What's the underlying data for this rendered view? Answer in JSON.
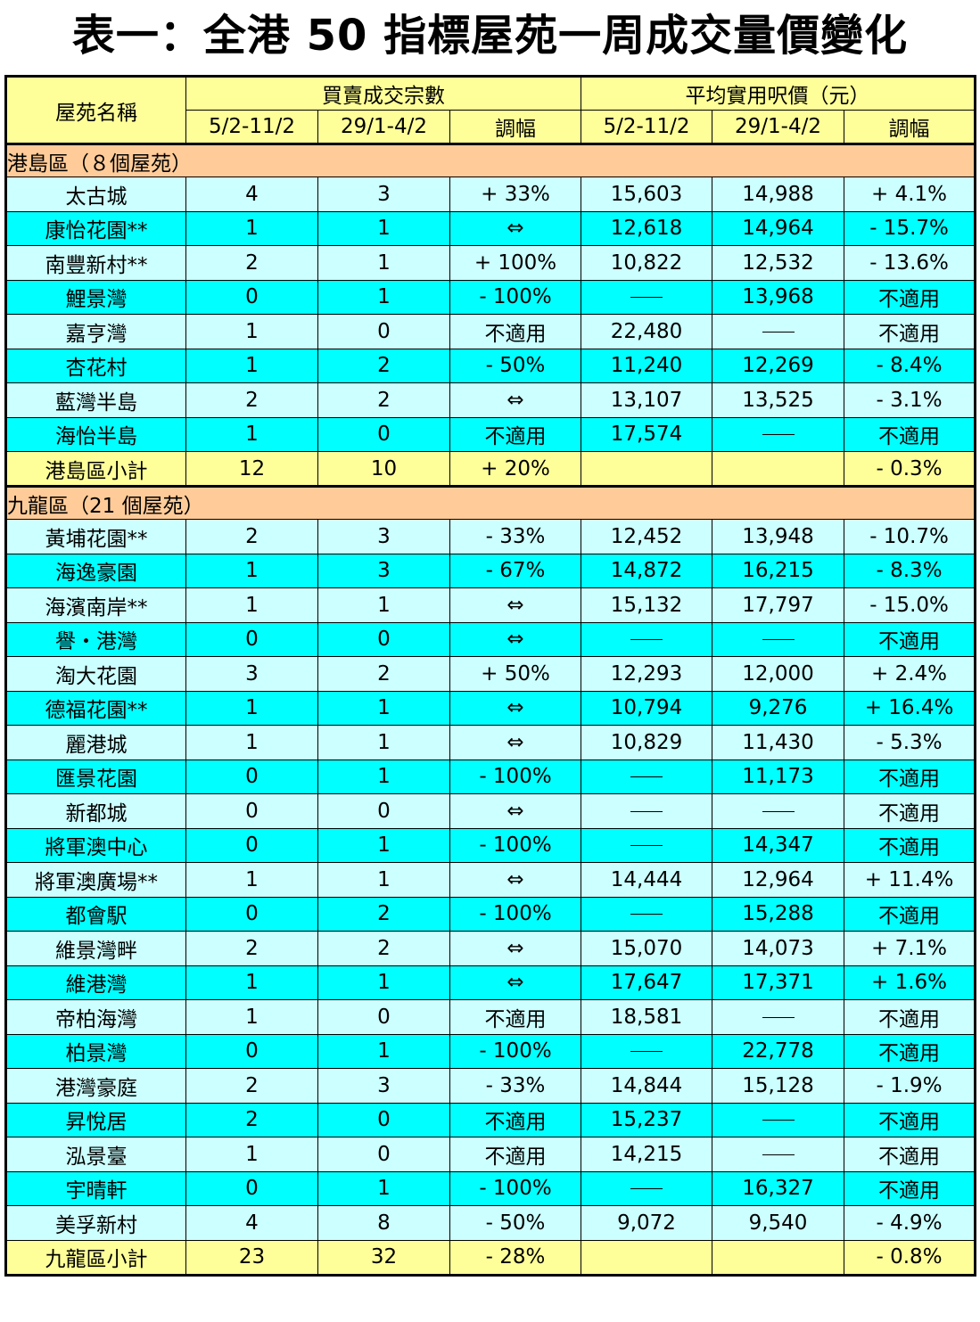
{
  "title": "表一：全港 50 指標屋苑一周成交量價變化",
  "header": {
    "name_col": "屋苑名稱",
    "group_volume": "買賣成交宗數",
    "group_price": "平均實用呎價（元）",
    "period_current": "5/2-11/2",
    "period_previous": "29/1-4/2",
    "change": "調幅"
  },
  "sections": [
    {
      "title": "港島區（８個屋苑）",
      "rows": [
        {
          "name": "太古城",
          "vol_cur": "4",
          "vol_prev": "3",
          "vol_chg": "+ 33%",
          "price_cur": "15,603",
          "price_prev": "14,988",
          "price_chg": "+ 4.1%"
        },
        {
          "name": "康怡花園**",
          "vol_cur": "1",
          "vol_prev": "1",
          "vol_chg": "⇔",
          "price_cur": "12,618",
          "price_prev": "14,964",
          "price_chg": "- 15.7%"
        },
        {
          "name": "南豐新村**",
          "vol_cur": "2",
          "vol_prev": "1",
          "vol_chg": "+ 100%",
          "price_cur": "10,822",
          "price_prev": "12,532",
          "price_chg": "- 13.6%"
        },
        {
          "name": "鯉景灣",
          "vol_cur": "0",
          "vol_prev": "1",
          "vol_chg": "- 100%",
          "price_cur": "—",
          "price_prev": "13,968",
          "price_chg": "不適用"
        },
        {
          "name": "嘉亨灣",
          "vol_cur": "1",
          "vol_prev": "0",
          "vol_chg": "不適用",
          "price_cur": "22,480",
          "price_prev": "—",
          "price_chg": "不適用"
        },
        {
          "name": "杏花村",
          "vol_cur": "1",
          "vol_prev": "2",
          "vol_chg": "- 50%",
          "price_cur": "11,240",
          "price_prev": "12,269",
          "price_chg": "- 8.4%"
        },
        {
          "name": "藍灣半島",
          "vol_cur": "2",
          "vol_prev": "2",
          "vol_chg": "⇔",
          "price_cur": "13,107",
          "price_prev": "13,525",
          "price_chg": "- 3.1%"
        },
        {
          "name": "海怡半島",
          "vol_cur": "1",
          "vol_prev": "0",
          "vol_chg": "不適用",
          "price_cur": "17,574",
          "price_prev": "—",
          "price_chg": "不適用"
        }
      ],
      "subtotal": {
        "name": "港島區小計",
        "vol_cur": "12",
        "vol_prev": "10",
        "vol_chg": "+ 20%",
        "price_cur": "",
        "price_prev": "",
        "price_chg": "- 0.3%"
      }
    },
    {
      "title": "九龍區（21 個屋苑）",
      "rows": [
        {
          "name": "黃埔花園**",
          "vol_cur": "2",
          "vol_prev": "3",
          "vol_chg": "- 33%",
          "price_cur": "12,452",
          "price_prev": "13,948",
          "price_chg": "- 10.7%"
        },
        {
          "name": "海逸豪園",
          "vol_cur": "1",
          "vol_prev": "3",
          "vol_chg": "- 67%",
          "price_cur": "14,872",
          "price_prev": "16,215",
          "price_chg": "- 8.3%"
        },
        {
          "name": "海濱南岸**",
          "vol_cur": "1",
          "vol_prev": "1",
          "vol_chg": "⇔",
          "price_cur": "15,132",
          "price_prev": "17,797",
          "price_chg": "- 15.0%"
        },
        {
          "name": "譽・港灣",
          "vol_cur": "0",
          "vol_prev": "0",
          "vol_chg": "⇔",
          "price_cur": "—",
          "price_prev": "—",
          "price_chg": "不適用"
        },
        {
          "name": "淘大花園",
          "vol_cur": "3",
          "vol_prev": "2",
          "vol_chg": "+ 50%",
          "price_cur": "12,293",
          "price_prev": "12,000",
          "price_chg": "+ 2.4%"
        },
        {
          "name": "德福花園**",
          "vol_cur": "1",
          "vol_prev": "1",
          "vol_chg": "⇔",
          "price_cur": "10,794",
          "price_prev": "9,276",
          "price_chg": "+ 16.4%"
        },
        {
          "name": "麗港城",
          "vol_cur": "1",
          "vol_prev": "1",
          "vol_chg": "⇔",
          "price_cur": "10,829",
          "price_prev": "11,430",
          "price_chg": "- 5.3%"
        },
        {
          "name": "匯景花園",
          "vol_cur": "0",
          "vol_prev": "1",
          "vol_chg": "- 100%",
          "price_cur": "—",
          "price_prev": "11,173",
          "price_chg": "不適用"
        },
        {
          "name": "新都城",
          "vol_cur": "0",
          "vol_prev": "0",
          "vol_chg": "⇔",
          "price_cur": "—",
          "price_prev": "—",
          "price_chg": "不適用"
        },
        {
          "name": "將軍澳中心",
          "vol_cur": "0",
          "vol_prev": "1",
          "vol_chg": "- 100%",
          "price_cur": "—",
          "price_prev": "14,347",
          "price_chg": "不適用"
        },
        {
          "name": "將軍澳廣場**",
          "vol_cur": "1",
          "vol_prev": "1",
          "vol_chg": "⇔",
          "price_cur": "14,444",
          "price_prev": "12,964",
          "price_chg": "+ 11.4%"
        },
        {
          "name": "都會駅",
          "vol_cur": "0",
          "vol_prev": "2",
          "vol_chg": "- 100%",
          "price_cur": "—",
          "price_prev": "15,288",
          "price_chg": "不適用"
        },
        {
          "name": "維景灣畔",
          "vol_cur": "2",
          "vol_prev": "2",
          "vol_chg": "⇔",
          "price_cur": "15,070",
          "price_prev": "14,073",
          "price_chg": "+ 7.1%"
        },
        {
          "name": "維港灣",
          "vol_cur": "1",
          "vol_prev": "1",
          "vol_chg": "⇔",
          "price_cur": "17,647",
          "price_prev": "17,371",
          "price_chg": "+ 1.6%"
        },
        {
          "name": "帝柏海灣",
          "vol_cur": "1",
          "vol_prev": "0",
          "vol_chg": "不適用",
          "price_cur": "18,581",
          "price_prev": "—",
          "price_chg": "不適用"
        },
        {
          "name": "柏景灣",
          "vol_cur": "0",
          "vol_prev": "1",
          "vol_chg": "- 100%",
          "price_cur": "—",
          "price_prev": "22,778",
          "price_chg": "不適用"
        },
        {
          "name": "港灣豪庭",
          "vol_cur": "2",
          "vol_prev": "3",
          "vol_chg": "- 33%",
          "price_cur": "14,844",
          "price_prev": "15,128",
          "price_chg": "- 1.9%"
        },
        {
          "name": "昇悅居",
          "vol_cur": "2",
          "vol_prev": "0",
          "vol_chg": "不適用",
          "price_cur": "15,237",
          "price_prev": "—",
          "price_chg": "不適用"
        },
        {
          "name": "泓景臺",
          "vol_cur": "1",
          "vol_prev": "0",
          "vol_chg": "不適用",
          "price_cur": "14,215",
          "price_prev": "—",
          "price_chg": "不適用"
        },
        {
          "name": "宇晴軒",
          "vol_cur": "0",
          "vol_prev": "1",
          "vol_chg": "- 100%",
          "price_cur": "—",
          "price_prev": "16,327",
          "price_chg": "不適用"
        },
        {
          "name": "美孚新村",
          "vol_cur": "4",
          "vol_prev": "8",
          "vol_chg": "- 50%",
          "price_cur": "9,072",
          "price_prev": "9,540",
          "price_chg": "- 4.9%"
        }
      ],
      "subtotal": {
        "name": "九龍區小計",
        "vol_cur": "23",
        "vol_prev": "32",
        "vol_chg": "- 28%",
        "price_cur": "",
        "price_prev": "",
        "price_chg": "- 0.8%"
      }
    }
  ],
  "colors": {
    "header_bg": "#ffff99",
    "section_bg": "#ffcc99",
    "row_light": "#ccffff",
    "row_dark": "#00ffff"
  }
}
